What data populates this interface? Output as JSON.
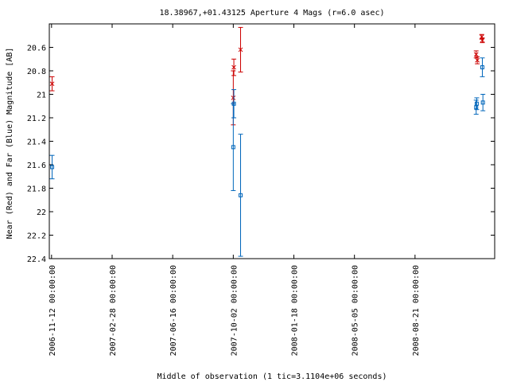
{
  "chart_data": {
    "type": "scatter",
    "title": "18.38967,+01.43125   Aperture 4 Mags (r=6.0 asec)",
    "xlabel": "Middle of observation (1 tic=3.1104e+06 seconds)",
    "ylabel": "Near (Red) and Far (Blue) Magnitude [AB]",
    "y_reversed": true,
    "ylim": [
      20.4,
      22.4
    ],
    "xlim": [
      "2006-11-08",
      "2009-01-10"
    ],
    "x_ticks": [
      "2006-11-12 00:00:00",
      "2007-02-28 00:00:00",
      "2007-06-16 00:00:00",
      "2007-10-02 00:00:00",
      "2008-01-18 00:00:00",
      "2008-05-05 00:00:00",
      "2008-08-21 00:00:00"
    ],
    "y_ticks": [
      "20.6",
      "20.8",
      "21",
      "21.2",
      "21.4",
      "21.6",
      "21.8",
      "22",
      "22.2",
      "22.4"
    ],
    "grid": false,
    "series": [
      {
        "name": "Near (Red)",
        "color": "#cc0000",
        "marker": "x",
        "points": [
          {
            "x": "2006-11-13",
            "y": 20.91,
            "err": 0.06
          },
          {
            "x": "2007-10-02",
            "y": 21.03,
            "err": 0.23
          },
          {
            "x": "2007-10-03",
            "y": 20.77,
            "err": 0.07
          },
          {
            "x": "2007-10-15",
            "y": 20.62,
            "err": 0.19
          },
          {
            "x": "2008-12-08",
            "y": 20.66,
            "err": 0.03
          },
          {
            "x": "2008-12-10",
            "y": 20.71,
            "err": 0.03
          },
          {
            "x": "2008-12-18",
            "y": 20.51,
            "err": 0.02
          },
          {
            "x": "2008-12-19",
            "y": 20.54,
            "err": 0.02
          }
        ]
      },
      {
        "name": "Far (Blue)",
        "color": "#0066bb",
        "marker": "square",
        "points": [
          {
            "x": "2006-11-13",
            "y": 21.62,
            "err": 0.1
          },
          {
            "x": "2007-10-02",
            "y": 21.45,
            "err": 0.37
          },
          {
            "x": "2007-10-03",
            "y": 21.08,
            "err": 0.12
          },
          {
            "x": "2007-10-15",
            "y": 21.86,
            "err": 0.52
          },
          {
            "x": "2008-12-08",
            "y": 21.11,
            "err": 0.06
          },
          {
            "x": "2008-12-09",
            "y": 21.08,
            "err": 0.05
          },
          {
            "x": "2008-12-19",
            "y": 20.77,
            "err": 0.08
          },
          {
            "x": "2008-12-20",
            "y": 21.07,
            "err": 0.07
          }
        ]
      }
    ]
  }
}
